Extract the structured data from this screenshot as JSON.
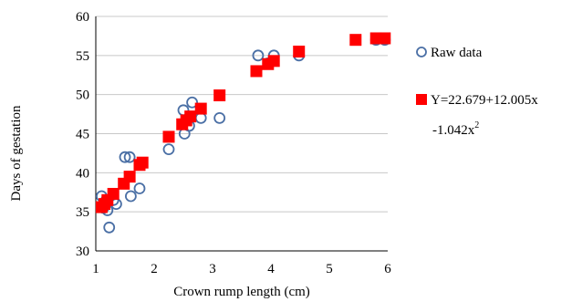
{
  "chart_data": {
    "type": "scatter",
    "xlabel": "Crown rump length (cm)",
    "ylabel": "Days of gestation",
    "xlim": [
      1,
      6
    ],
    "ylim": [
      30,
      60
    ],
    "x_ticks": [
      "1",
      "2",
      "3",
      "4",
      "5",
      "6"
    ],
    "y_ticks": [
      "30",
      "35",
      "40",
      "45",
      "50",
      "55",
      "60"
    ],
    "grid": "horizontal",
    "legend_position": "right",
    "series": [
      {
        "name": "Raw data",
        "marker": "hollow-circle",
        "color": "#4a6fa5",
        "points": [
          [
            1.1,
            37
          ],
          [
            1.13,
            35.5
          ],
          [
            1.15,
            36
          ],
          [
            1.18,
            36.5
          ],
          [
            1.2,
            35.2
          ],
          [
            1.23,
            33
          ],
          [
            1.3,
            36.5
          ],
          [
            1.35,
            36
          ],
          [
            1.5,
            42
          ],
          [
            1.58,
            42
          ],
          [
            1.6,
            37
          ],
          [
            1.75,
            38
          ],
          [
            2.25,
            43
          ],
          [
            2.5,
            48
          ],
          [
            2.52,
            45
          ],
          [
            2.6,
            46
          ],
          [
            2.65,
            49
          ],
          [
            2.8,
            47
          ],
          [
            3.12,
            47
          ],
          [
            3.78,
            55
          ],
          [
            3.95,
            54
          ],
          [
            4.05,
            55
          ],
          [
            4.48,
            55
          ],
          [
            5.8,
            57
          ],
          [
            5.95,
            57
          ]
        ]
      },
      {
        "name": "Y=22.679+12.005x -1.042x²",
        "marker": "filled-square",
        "color": "#ff0000",
        "points": [
          [
            1.1,
            35.6
          ],
          [
            1.15,
            36
          ],
          [
            1.2,
            36.5
          ],
          [
            1.3,
            37.3
          ],
          [
            1.48,
            38.6
          ],
          [
            1.58,
            39.5
          ],
          [
            1.75,
            41
          ],
          [
            1.8,
            41.3
          ],
          [
            2.25,
            44.6
          ],
          [
            2.48,
            46.2
          ],
          [
            2.55,
            46.7
          ],
          [
            2.62,
            47.2
          ],
          [
            2.8,
            48.2
          ],
          [
            3.12,
            49.9
          ],
          [
            3.75,
            53
          ],
          [
            3.95,
            53.9
          ],
          [
            4.05,
            54.3
          ],
          [
            4.48,
            55.5
          ],
          [
            5.45,
            57
          ],
          [
            5.8,
            57.2
          ],
          [
            5.95,
            57.2
          ]
        ]
      }
    ]
  },
  "legend": {
    "raw_label": "Raw data",
    "fit_line1": "Y=22.679+12.005x",
    "fit_line2_prefix": "-1.042x",
    "fit_line2_sup": "2"
  }
}
